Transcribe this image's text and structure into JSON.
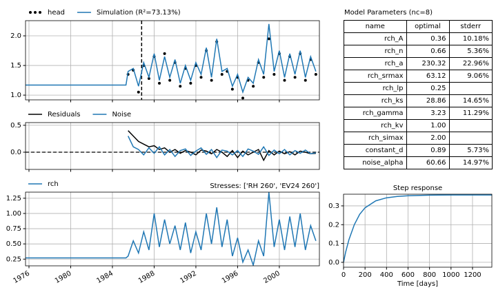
{
  "chart_data": [
    {
      "type": "line",
      "legend": "above",
      "grid": true,
      "xlim": [
        1975.67,
        2003.84
      ],
      "xticks": [
        1976,
        1980,
        1984,
        1988,
        1992,
        1996,
        2000
      ],
      "xtick_labels": false,
      "ylim": [
        0.92,
        2.256
      ],
      "yticks": [
        {
          "value": 1,
          "label": "1.0"
        },
        1.5,
        {
          "value": 2,
          "label": "2.0"
        }
      ],
      "vlines": [
        1986.8
      ],
      "series": [
        {
          "name": "head",
          "kind": "scatter",
          "color": "#000000",
          "x": [
            1985.5,
            1986,
            1986.5,
            1987,
            1987.5,
            1988,
            1988.5,
            1989,
            1989.5,
            1990,
            1990.5,
            1991,
            1991.5,
            1992,
            1992.5,
            1993,
            1993.5,
            1994,
            1994.5,
            1995,
            1995.5,
            1996,
            1996.5,
            1997,
            1997.5,
            1998,
            1998.5,
            1999,
            1999.5,
            2000,
            2000.5,
            2001,
            2001.5,
            2002,
            2002.5,
            2003,
            2003.5
          ],
          "values": [
            1.35,
            1.42,
            1.05,
            1.5,
            1.28,
            1.65,
            1.2,
            1.7,
            1.25,
            1.55,
            1.15,
            1.45,
            1.2,
            1.5,
            1.3,
            1.75,
            1.25,
            1.9,
            1.35,
            1.4,
            1.1,
            1.3,
            0.95,
            1.25,
            1.15,
            1.55,
            1.3,
            1.95,
            1.35,
            1.7,
            1.25,
            1.65,
            1.3,
            1.7,
            1.25,
            1.6,
            1.35
          ]
        },
        {
          "name": "Simulation (R²=73.13%)",
          "kind": "line",
          "color": "#1f77b4",
          "x": [
            1975.67,
            1985.3,
            1985.5,
            1986,
            1986.5,
            1987,
            1987.5,
            1988,
            1988.5,
            1989,
            1989.5,
            1990,
            1990.5,
            1991,
            1991.5,
            1992,
            1992.5,
            1993,
            1993.5,
            1994,
            1994.5,
            1995,
            1995.5,
            1996,
            1996.5,
            1997,
            1997.5,
            1998,
            1998.5,
            1999,
            1999.5,
            2000,
            2000.5,
            2001,
            2001.5,
            2002,
            2002.5,
            2003,
            2003.5
          ],
          "values": [
            1.17,
            1.17,
            1.4,
            1.45,
            1.15,
            1.55,
            1.3,
            1.7,
            1.25,
            1.65,
            1.3,
            1.6,
            1.2,
            1.5,
            1.25,
            1.55,
            1.35,
            1.8,
            1.3,
            1.95,
            1.4,
            1.45,
            1.15,
            1.35,
            1.05,
            1.3,
            1.2,
            1.6,
            1.35,
            2.2,
            1.4,
            1.75,
            1.3,
            1.7,
            1.35,
            1.75,
            1.3,
            1.65,
            1.4
          ]
        }
      ]
    },
    {
      "type": "line",
      "legend": "above",
      "grid": true,
      "xlim": [
        1975.67,
        2003.84
      ],
      "xticks": [
        1976,
        1980,
        1984,
        1988,
        1992,
        1996,
        2000
      ],
      "xtick_labels": false,
      "ylim": [
        -0.32,
        0.55
      ],
      "yticks": [
        {
          "value": 0,
          "label": "0.0"
        },
        0.5
      ],
      "hlines": [
        0
      ],
      "series": [
        {
          "name": "Residuals",
          "kind": "line",
          "color": "#000000",
          "x": [
            1985.5,
            1986,
            1986.5,
            1987,
            1987.5,
            1988,
            1988.5,
            1989,
            1989.5,
            1990,
            1990.5,
            1991,
            1991.5,
            1992,
            1992.5,
            1993,
            1993.5,
            1994,
            1994.5,
            1995,
            1995.5,
            1996,
            1996.5,
            1997,
            1997.5,
            1998,
            1998.5,
            1999,
            1999.5,
            2000,
            2000.5,
            2001,
            2001.5,
            2002,
            2002.5,
            2003,
            2003.5
          ],
          "values": [
            0.4,
            0.3,
            0.2,
            0.15,
            0.1,
            0.12,
            0.05,
            0.08,
            0.0,
            0.05,
            -0.02,
            0.03,
            0.0,
            -0.05,
            0.04,
            0.02,
            -0.03,
            0.05,
            0.0,
            -0.08,
            0.03,
            -0.1,
            0.02,
            -0.05,
            0.0,
            0.05,
            -0.15,
            0.03,
            -0.05,
            0.02,
            -0.03,
            0.01,
            -0.05,
            0.02,
            0.0,
            -0.03,
            -0.02
          ]
        },
        {
          "name": "Noise",
          "kind": "line",
          "color": "#1f77b4",
          "x": [
            1985.5,
            1986,
            1986.5,
            1987,
            1987.5,
            1988,
            1988.5,
            1989,
            1989.5,
            1990,
            1990.5,
            1991,
            1991.5,
            1992,
            1992.5,
            1993,
            1993.5,
            1994,
            1994.5,
            1995,
            1995.5,
            1996,
            1996.5,
            1997,
            1997.5,
            1998,
            1998.5,
            1999,
            1999.5,
            2000,
            2000.5,
            2001,
            2001.5,
            2002,
            2002.5,
            2003,
            2003.5
          ],
          "values": [
            0.3,
            0.1,
            0.05,
            -0.05,
            0.08,
            -0.02,
            0.1,
            -0.05,
            0.05,
            -0.08,
            0.03,
            0.06,
            -0.06,
            0.02,
            0.08,
            -0.04,
            0.05,
            -0.1,
            0.04,
            0.02,
            -0.05,
            0.03,
            -0.08,
            0.06,
            0.02,
            -0.04,
            0.1,
            -0.06,
            0.04,
            -0.03,
            0.05,
            -0.05,
            0.03,
            -0.02,
            0.04,
            -0.03,
            -0.01
          ]
        }
      ]
    },
    {
      "type": "line",
      "legend": "above",
      "grid": true,
      "title": "Stresses: ['RH 260', 'EV24 260']",
      "title_align": "right",
      "xlim": [
        1975.67,
        2003.84
      ],
      "xticks": [
        1976,
        1980,
        1984,
        1988,
        1992,
        1996,
        2000
      ],
      "xtick_labels": true,
      "ylim": [
        0.14,
        1.35
      ],
      "yticks": [
        0.25,
        {
          "value": 0.5,
          "label": "0.50"
        },
        0.75,
        {
          "value": 1,
          "label": "1.00"
        },
        1.25
      ],
      "series": [
        {
          "name": "rch",
          "kind": "line",
          "color": "#1f77b4",
          "x": [
            1975.67,
            1985.3,
            1985.5,
            1986,
            1986.5,
            1987,
            1987.5,
            1988,
            1988.5,
            1989,
            1989.5,
            1990,
            1990.5,
            1991,
            1991.5,
            1992,
            1992.5,
            1993,
            1993.5,
            1994,
            1994.5,
            1995,
            1995.5,
            1996,
            1996.5,
            1997,
            1997.5,
            1998,
            1998.5,
            1999,
            1999.5,
            2000,
            2000.5,
            2001,
            2001.5,
            2002,
            2002.5,
            2003,
            2003.5
          ],
          "values": [
            0.27,
            0.27,
            0.3,
            0.55,
            0.35,
            0.7,
            0.4,
            1.0,
            0.45,
            0.9,
            0.5,
            0.8,
            0.4,
            0.85,
            0.35,
            0.7,
            0.4,
            1.0,
            0.5,
            1.1,
            0.45,
            0.9,
            0.3,
            0.6,
            0.2,
            0.4,
            0.15,
            0.55,
            0.3,
            1.35,
            0.45,
            0.9,
            0.4,
            0.95,
            0.45,
            1.0,
            0.4,
            0.8,
            0.55
          ]
        }
      ]
    },
    {
      "type": "line",
      "grid": true,
      "title": "Step response",
      "title_align": "center",
      "xlabel": "Time [days]",
      "xlim": [
        0,
        1380
      ],
      "xticks": [
        0,
        200,
        400,
        600,
        800,
        1000,
        1200
      ],
      "xtick_labels": true,
      "ylim": [
        -0.026,
        0.362
      ],
      "yticks": [
        {
          "value": 0,
          "label": "0.0"
        },
        0.1,
        0.2,
        0.3
      ],
      "series": [
        {
          "kind": "line",
          "color": "#1f77b4",
          "x": [
            0,
            20,
            50,
            100,
            150,
            200,
            300,
            400,
            500,
            600,
            800,
            1000,
            1200,
            1380
          ],
          "values": [
            0,
            0.055,
            0.12,
            0.2,
            0.255,
            0.29,
            0.327,
            0.343,
            0.35,
            0.354,
            0.357,
            0.358,
            0.358,
            0.358
          ]
        }
      ]
    }
  ],
  "table": {
    "title": "Model Parameters (nc=8)",
    "columns": [
      "name",
      "optimal",
      "stderr"
    ],
    "rows": [
      [
        "rch_A",
        "0.36",
        "10.18%"
      ],
      [
        "rch_n",
        "0.66",
        "5.36%"
      ],
      [
        "rch_a",
        "230.32",
        "22.96%"
      ],
      [
        "rch_srmax",
        "63.12",
        "9.06%"
      ],
      [
        "rch_lp",
        "0.25",
        null
      ],
      [
        "rch_ks",
        "28.86",
        "14.65%"
      ],
      [
        "rch_gamma",
        "3.23",
        "11.29%"
      ],
      [
        "rch_kv",
        "1.00",
        null
      ],
      [
        "rch_simax",
        "2.00",
        null
      ],
      [
        "constant_d",
        "0.89",
        "5.73%"
      ],
      [
        "noise_alpha",
        "60.66",
        "14.97%"
      ]
    ]
  }
}
